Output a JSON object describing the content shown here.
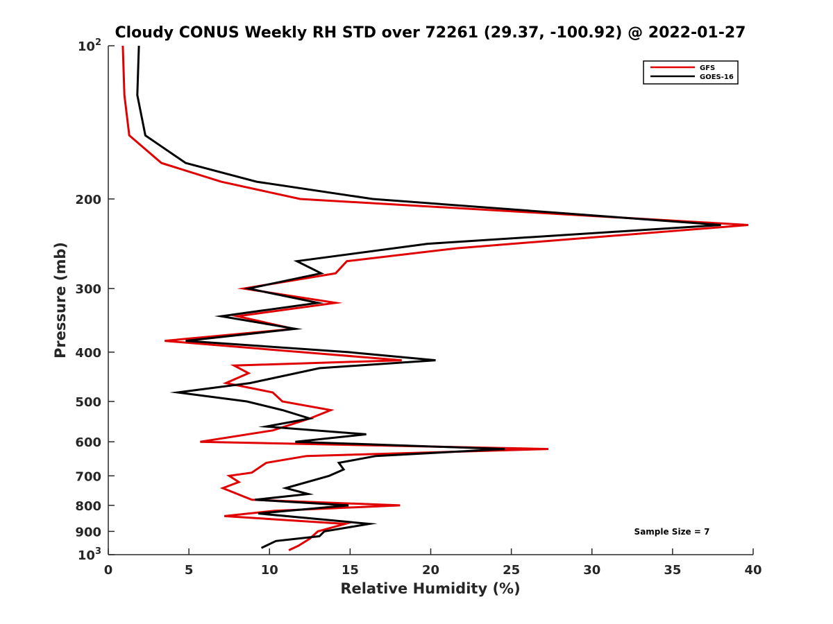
{
  "chart_data": {
    "type": "line",
    "title": "Cloudy CONUS Weekly RH STD over 72261 (29.37, -100.92) @ 2022-01-27",
    "xlabel": "Relative Humidity (%)",
    "ylabel": "Pressure (mb)",
    "xlim": [
      0,
      40
    ],
    "ylim": [
      100,
      1000
    ],
    "y_scale": "log",
    "y_reversed": true,
    "x_ticks": [
      0,
      5,
      10,
      15,
      20,
      25,
      30,
      35,
      40
    ],
    "x_tick_labels": [
      "0",
      "5",
      "10",
      "15",
      "20",
      "25",
      "30",
      "35",
      "40"
    ],
    "y_ticks": [
      {
        "value": 100,
        "base": "10",
        "exp": "2"
      },
      {
        "value": 200,
        "label": "200"
      },
      {
        "value": 300,
        "label": "300"
      },
      {
        "value": 400,
        "label": "400"
      },
      {
        "value": 500,
        "label": "500"
      },
      {
        "value": 600,
        "label": "600"
      },
      {
        "value": 700,
        "label": "700"
      },
      {
        "value": 800,
        "label": "800"
      },
      {
        "value": 900,
        "label": "900"
      },
      {
        "value": 1000,
        "base": "10",
        "exp": "3"
      }
    ],
    "legend_position": "top-right",
    "grid": false,
    "series": [
      {
        "name": "GFS",
        "color": "#e00000",
        "points": [
          [
            0.9,
            100
          ],
          [
            1.0,
            125
          ],
          [
            1.3,
            150
          ],
          [
            3.3,
            170
          ],
          [
            7.0,
            185
          ],
          [
            11.9,
            200
          ],
          [
            39.7,
            225
          ],
          [
            21.6,
            250
          ],
          [
            14.8,
            265
          ],
          [
            14.1,
            280
          ],
          [
            8.4,
            300
          ],
          [
            14.1,
            320
          ],
          [
            8.0,
            340
          ],
          [
            11.5,
            360
          ],
          [
            3.5,
            380
          ],
          [
            12.0,
            400
          ],
          [
            18.2,
            415
          ],
          [
            7.8,
            425
          ],
          [
            8.7,
            440
          ],
          [
            7.3,
            460
          ],
          [
            10.2,
            480
          ],
          [
            10.8,
            500
          ],
          [
            13.8,
            520
          ],
          [
            12.5,
            540
          ],
          [
            10.2,
            570
          ],
          [
            5.7,
            600
          ],
          [
            27.3,
            620
          ],
          [
            12.3,
            640
          ],
          [
            9.8,
            660
          ],
          [
            8.9,
            690
          ],
          [
            7.5,
            700
          ],
          [
            8.1,
            720
          ],
          [
            7.1,
            740
          ],
          [
            8.9,
            780
          ],
          [
            18.1,
            800
          ],
          [
            10.3,
            820
          ],
          [
            7.2,
            840
          ],
          [
            14.7,
            870
          ],
          [
            13.0,
            900
          ],
          [
            12.5,
            930
          ],
          [
            11.8,
            960
          ],
          [
            11.2,
            980
          ]
        ]
      },
      {
        "name": "GOES-16",
        "color": "#000000",
        "points": [
          [
            1.9,
            100
          ],
          [
            1.8,
            125
          ],
          [
            2.3,
            150
          ],
          [
            4.8,
            170
          ],
          [
            9.2,
            185
          ],
          [
            16.4,
            200
          ],
          [
            38.0,
            225
          ],
          [
            19.8,
            245
          ],
          [
            11.7,
            265
          ],
          [
            13.2,
            280
          ],
          [
            8.7,
            300
          ],
          [
            13.0,
            320
          ],
          [
            7.0,
            340
          ],
          [
            11.6,
            360
          ],
          [
            4.8,
            380
          ],
          [
            14.9,
            400
          ],
          [
            20.3,
            415
          ],
          [
            13.1,
            430
          ],
          [
            8.8,
            460
          ],
          [
            4.3,
            480
          ],
          [
            8.6,
            500
          ],
          [
            10.8,
            520
          ],
          [
            12.5,
            540
          ],
          [
            9.8,
            560
          ],
          [
            16.0,
            580
          ],
          [
            11.6,
            600
          ],
          [
            24.6,
            620
          ],
          [
            16.6,
            640
          ],
          [
            14.3,
            660
          ],
          [
            14.6,
            680
          ],
          [
            13.7,
            700
          ],
          [
            11.0,
            740
          ],
          [
            12.4,
            760
          ],
          [
            9.1,
            780
          ],
          [
            14.9,
            800
          ],
          [
            9.3,
            830
          ],
          [
            16.2,
            870
          ],
          [
            13.4,
            900
          ],
          [
            13.1,
            920
          ],
          [
            10.4,
            940
          ],
          [
            9.5,
            970
          ]
        ]
      }
    ],
    "annotations": [
      {
        "text": "Sample Size = 7"
      }
    ]
  }
}
